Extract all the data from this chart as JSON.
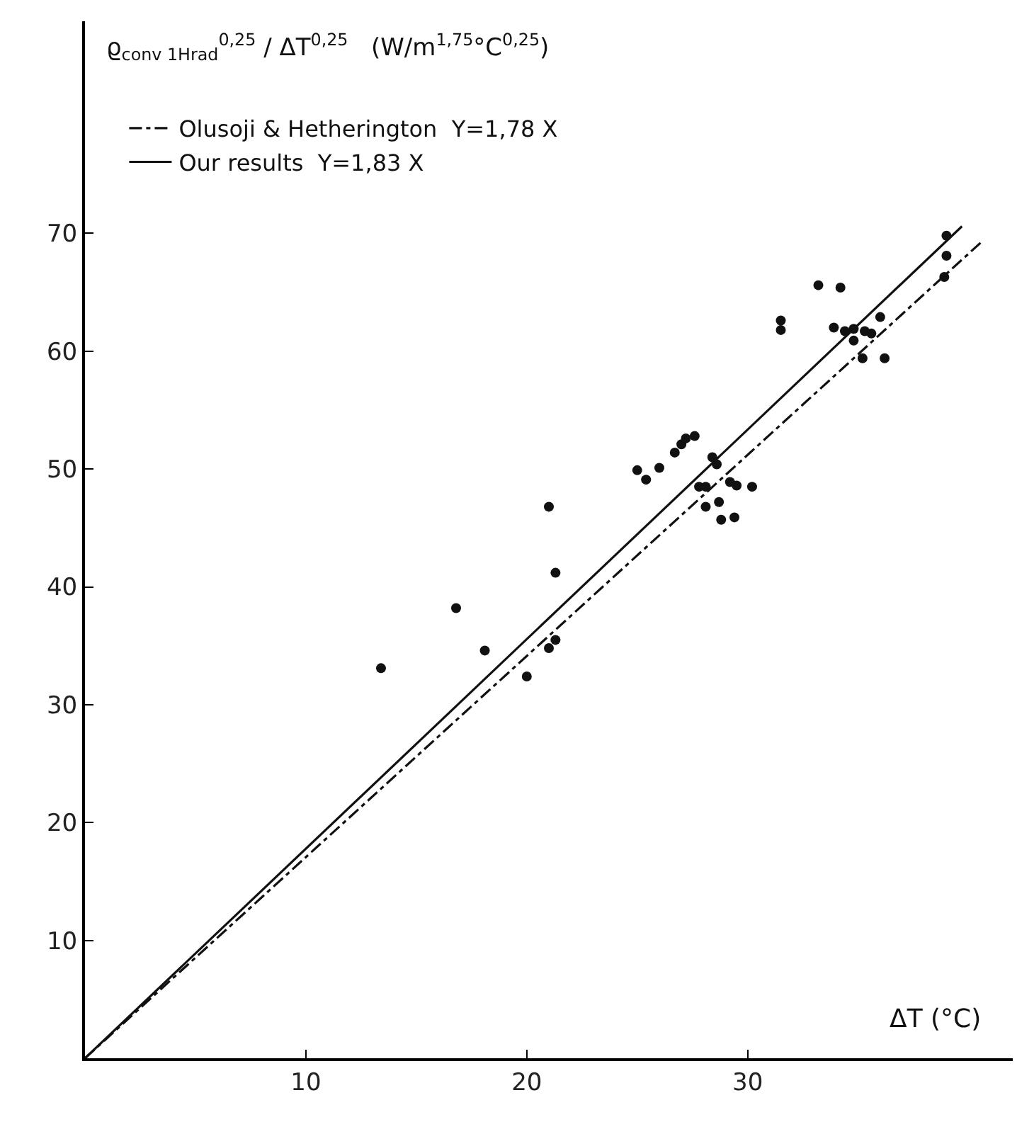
{
  "chart_data": {
    "type": "scatter",
    "ylabel": "ϱ$_{conv 1Hrad}$$^{0,25}$ / ΔT$^{0,25}$   (W/m$^{1,75}$°C$^{0,25}$)",
    "xlabel": "ΔT (°C)",
    "xlim": [
      0,
      42
    ],
    "ylim": [
      0,
      88
    ],
    "xticks": [
      10,
      20,
      30
    ],
    "yticks": [
      10,
      20,
      30,
      40,
      50,
      60,
      70
    ],
    "legend": "top left",
    "marker": "circle",
    "series": [
      {
        "color": "#111111",
        "x": [
          13.4,
          16.8,
          18.1,
          20.0,
          21.0,
          21.3,
          21.3,
          21.0,
          33.2,
          34.2,
          31.5,
          31.5,
          39.0,
          39.0,
          38.9,
          33.9,
          34.4,
          34.8,
          35.3,
          35.6,
          36.0,
          34.8,
          35.2,
          36.2,
          25.0,
          25.4,
          26.0,
          26.7,
          27.0,
          27.2,
          27.6,
          28.4,
          28.6,
          27.8,
          28.1,
          29.2,
          29.5,
          30.2,
          28.1,
          28.7,
          28.8,
          29.4
        ],
        "values": [
          33.1,
          38.2,
          34.6,
          32.4,
          46.8,
          41.2,
          35.5,
          34.8,
          65.6,
          65.4,
          62.6,
          61.8,
          69.8,
          68.1,
          66.3,
          62.0,
          61.7,
          61.9,
          61.7,
          61.5,
          62.9,
          60.9,
          59.4,
          59.4,
          49.9,
          49.1,
          50.1,
          51.4,
          52.1,
          52.6,
          52.8,
          51.0,
          50.4,
          48.5,
          48.5,
          48.9,
          48.6,
          48.5,
          46.8,
          47.2,
          45.7,
          45.9
        ]
      },
      {
        "type": "line",
        "name": "Olusoji & Hetherington  Y=1,78 X",
        "color": "#111111",
        "line_style": "dashdot",
        "marker": "none",
        "x": [
          0,
          40.6
        ],
        "values": [
          0,
          69.3
        ]
      },
      {
        "type": "line",
        "name": "Our results  Y=1,83 X",
        "color": "#111111",
        "line_style": "solid",
        "marker": "none",
        "x": [
          0,
          39.7
        ],
        "values": [
          0,
          70.6
        ]
      }
    ]
  }
}
